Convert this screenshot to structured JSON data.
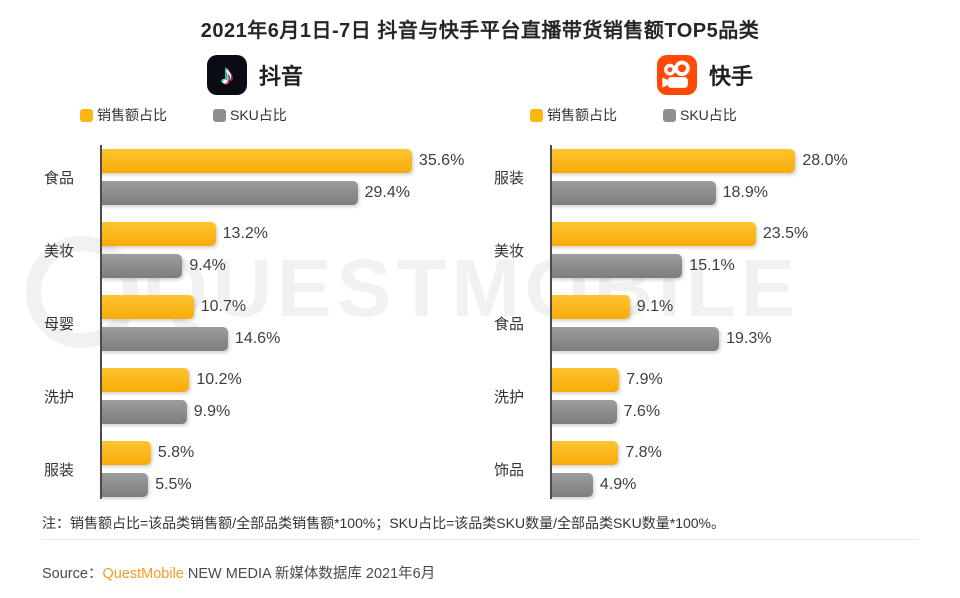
{
  "title": "2021年6月1日-7日 抖音与快手平台直播带货销售额TOP5品类",
  "watermark_text": "QUESTMOBILE",
  "colors": {
    "sales_bar": "#FBB612",
    "sku_bar": "#8E8E8E",
    "douyin_logo_bg": "#0B0B13",
    "kuaishou_logo_bg": "#FF4906",
    "source_brand": "#F59B22"
  },
  "legend": {
    "sales_label": "销售额占比",
    "sku_label": "SKU占比"
  },
  "icons": {
    "douyin_note_glyph": "♪"
  },
  "chart_data": [
    {
      "type": "bar",
      "orientation": "horizontal",
      "title": "抖音",
      "categories": [
        "食品",
        "美妆",
        "母婴",
        "洗护",
        "服装"
      ],
      "series": [
        {
          "name": "销售额占比",
          "color": "#FBB612",
          "values": [
            35.6,
            13.2,
            10.7,
            10.2,
            5.8
          ]
        },
        {
          "name": "SKU占比",
          "color": "#8E8E8E",
          "values": [
            29.4,
            9.4,
            14.6,
            9.9,
            5.5
          ]
        }
      ],
      "value_suffix": "%",
      "axis_max": 42,
      "grid": false,
      "legend_position": "top"
    },
    {
      "type": "bar",
      "orientation": "horizontal",
      "title": "快手",
      "categories": [
        "服装",
        "美妆",
        "食品",
        "洗护",
        "饰品"
      ],
      "series": [
        {
          "name": "销售额占比",
          "color": "#FBB612",
          "values": [
            28.0,
            23.5,
            9.1,
            7.9,
            7.8
          ]
        },
        {
          "name": "SKU占比",
          "color": "#8E8E8E",
          "values": [
            18.9,
            15.1,
            19.3,
            7.6,
            4.9
          ]
        }
      ],
      "value_suffix": "%",
      "axis_max": 42,
      "grid": false,
      "legend_position": "top"
    }
  ],
  "note": "注：销售额占比=该品类销售额/全部品类销售额*100%；SKU占比=该品类SKU数量/全部品类SKU数量*100%。",
  "source": {
    "prefix": "Source：",
    "brand": "QuestMobile",
    "suffix": " NEW MEDIA 新媒体数据库 2021年6月"
  }
}
